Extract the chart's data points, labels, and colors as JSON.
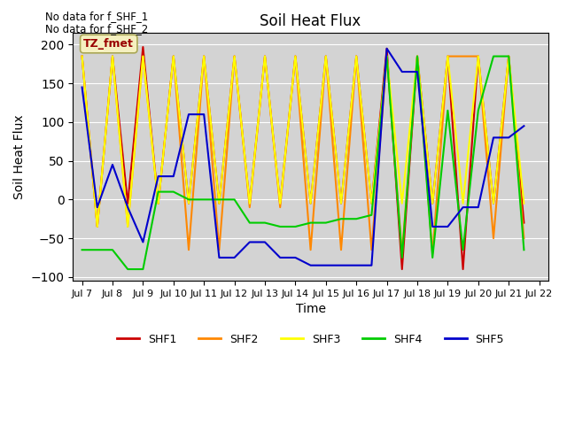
{
  "title": "Soil Heat Flux",
  "ylabel": "Soil Heat Flux",
  "xlabel": "Time",
  "annotation1": "No data for f_SHF_1",
  "annotation2": "No data for f_SHF_2",
  "tz_label": "TZ_fmet",
  "ylim": [
    -105,
    215
  ],
  "yticks": [
    -100,
    -50,
    0,
    50,
    100,
    150,
    200
  ],
  "bg_color": "#d3d3d3",
  "colors": {
    "SHF1": "#cc0000",
    "SHF2": "#ff8800",
    "SHF3": "#ffff00",
    "SHF4": "#00cc00",
    "SHF5": "#0000cc"
  },
  "x_labels": [
    "Jul 7",
    "Jul 8",
    "Jul 9",
    "Jul 10",
    "Jul 11",
    "Jul 12",
    "Jul 13",
    "Jul 14",
    "Jul 15",
    "Jul 16",
    "Jul 17",
    "Jul 18",
    "Jul 19",
    "Jul 20",
    "Jul 21",
    "Jul 22"
  ],
  "x_positions": [
    7,
    8,
    9,
    10,
    11,
    12,
    13,
    14,
    15,
    16,
    17,
    18,
    19,
    20,
    21,
    22
  ],
  "SHF1_x": [
    7.0,
    7.5,
    8.0,
    8.5,
    9.0,
    9.5,
    10.0,
    10.5,
    11.0,
    11.5,
    12.0,
    12.5,
    13.0,
    13.5,
    14.0,
    14.5,
    15.0,
    15.5,
    16.0,
    16.5,
    17.0,
    17.5,
    18.0,
    18.5,
    19.0,
    19.5,
    20.0,
    20.5,
    21.0,
    21.5
  ],
  "SHF1_y": [
    185,
    -35,
    185,
    -5,
    197,
    -5,
    185,
    -5,
    185,
    -5,
    185,
    -5,
    185,
    -5,
    185,
    -5,
    185,
    -5,
    185,
    -5,
    195,
    -90,
    185,
    -5,
    185,
    -90,
    185,
    -5,
    185,
    -30
  ],
  "SHF2_x": [
    7.0,
    7.5,
    8.0,
    8.5,
    9.0,
    9.5,
    10.0,
    10.5,
    11.0,
    11.5,
    12.0,
    12.5,
    13.0,
    13.5,
    14.0,
    14.5,
    15.0,
    15.5,
    16.0,
    16.5,
    17.0,
    17.5,
    18.0,
    18.5,
    19.0,
    19.5,
    20.0,
    20.5,
    21.0,
    21.5
  ],
  "SHF2_y": [
    185,
    -35,
    185,
    -35,
    185,
    -5,
    185,
    -65,
    185,
    -65,
    185,
    -10,
    185,
    -10,
    185,
    -65,
    185,
    -65,
    185,
    -65,
    185,
    -70,
    185,
    -70,
    185,
    185,
    185,
    -50,
    185,
    -50
  ],
  "SHF3_x": [
    7.0,
    7.5,
    8.0,
    8.5,
    9.0,
    9.5,
    10.0,
    10.5,
    11.0,
    11.5,
    12.0,
    12.5,
    13.0,
    13.5,
    14.0,
    14.5,
    15.0,
    15.5,
    16.0,
    16.5,
    17.0,
    17.5,
    18.0,
    18.5,
    19.0,
    19.5,
    20.0,
    20.5,
    21.0,
    21.5
  ],
  "SHF3_y": [
    185,
    -35,
    185,
    -35,
    185,
    -5,
    185,
    -5,
    185,
    -5,
    185,
    -5,
    185,
    -5,
    185,
    -5,
    185,
    -5,
    185,
    -5,
    185,
    -5,
    185,
    -5,
    185,
    -5,
    185,
    -5,
    185,
    -5
  ],
  "SHF4_x": [
    7.0,
    7.5,
    8.0,
    8.5,
    9.0,
    9.5,
    10.0,
    10.5,
    11.0,
    11.5,
    12.0,
    12.5,
    13.0,
    13.5,
    14.0,
    14.5,
    15.0,
    15.5,
    16.0,
    16.5,
    17.0,
    17.5,
    18.0,
    18.5,
    19.0,
    19.5,
    20.0,
    20.5,
    21.0,
    21.5
  ],
  "SHF4_y": [
    -65,
    -65,
    -65,
    -90,
    -90,
    10,
    10,
    0,
    0,
    0,
    0,
    -30,
    -30,
    -35,
    -35,
    -30,
    -30,
    -25,
    -25,
    -20,
    185,
    -75,
    185,
    -75,
    115,
    -65,
    115,
    185,
    185,
    -65
  ],
  "SHF5_x": [
    7.0,
    7.5,
    8.0,
    8.5,
    9.0,
    9.5,
    10.0,
    10.5,
    11.0,
    11.5,
    12.0,
    12.5,
    13.0,
    13.5,
    14.0,
    14.5,
    15.0,
    15.5,
    16.0,
    16.5,
    17.0,
    17.5,
    18.0,
    18.5,
    19.0,
    19.5,
    20.0,
    20.5,
    21.0,
    21.5
  ],
  "SHF5_y": [
    145,
    -10,
    45,
    -10,
    -55,
    30,
    30,
    110,
    110,
    -75,
    -75,
    -55,
    -55,
    -75,
    -75,
    -85,
    -85,
    -85,
    -85,
    -85,
    195,
    165,
    165,
    -35,
    -35,
    -10,
    -10,
    80,
    80,
    95
  ]
}
